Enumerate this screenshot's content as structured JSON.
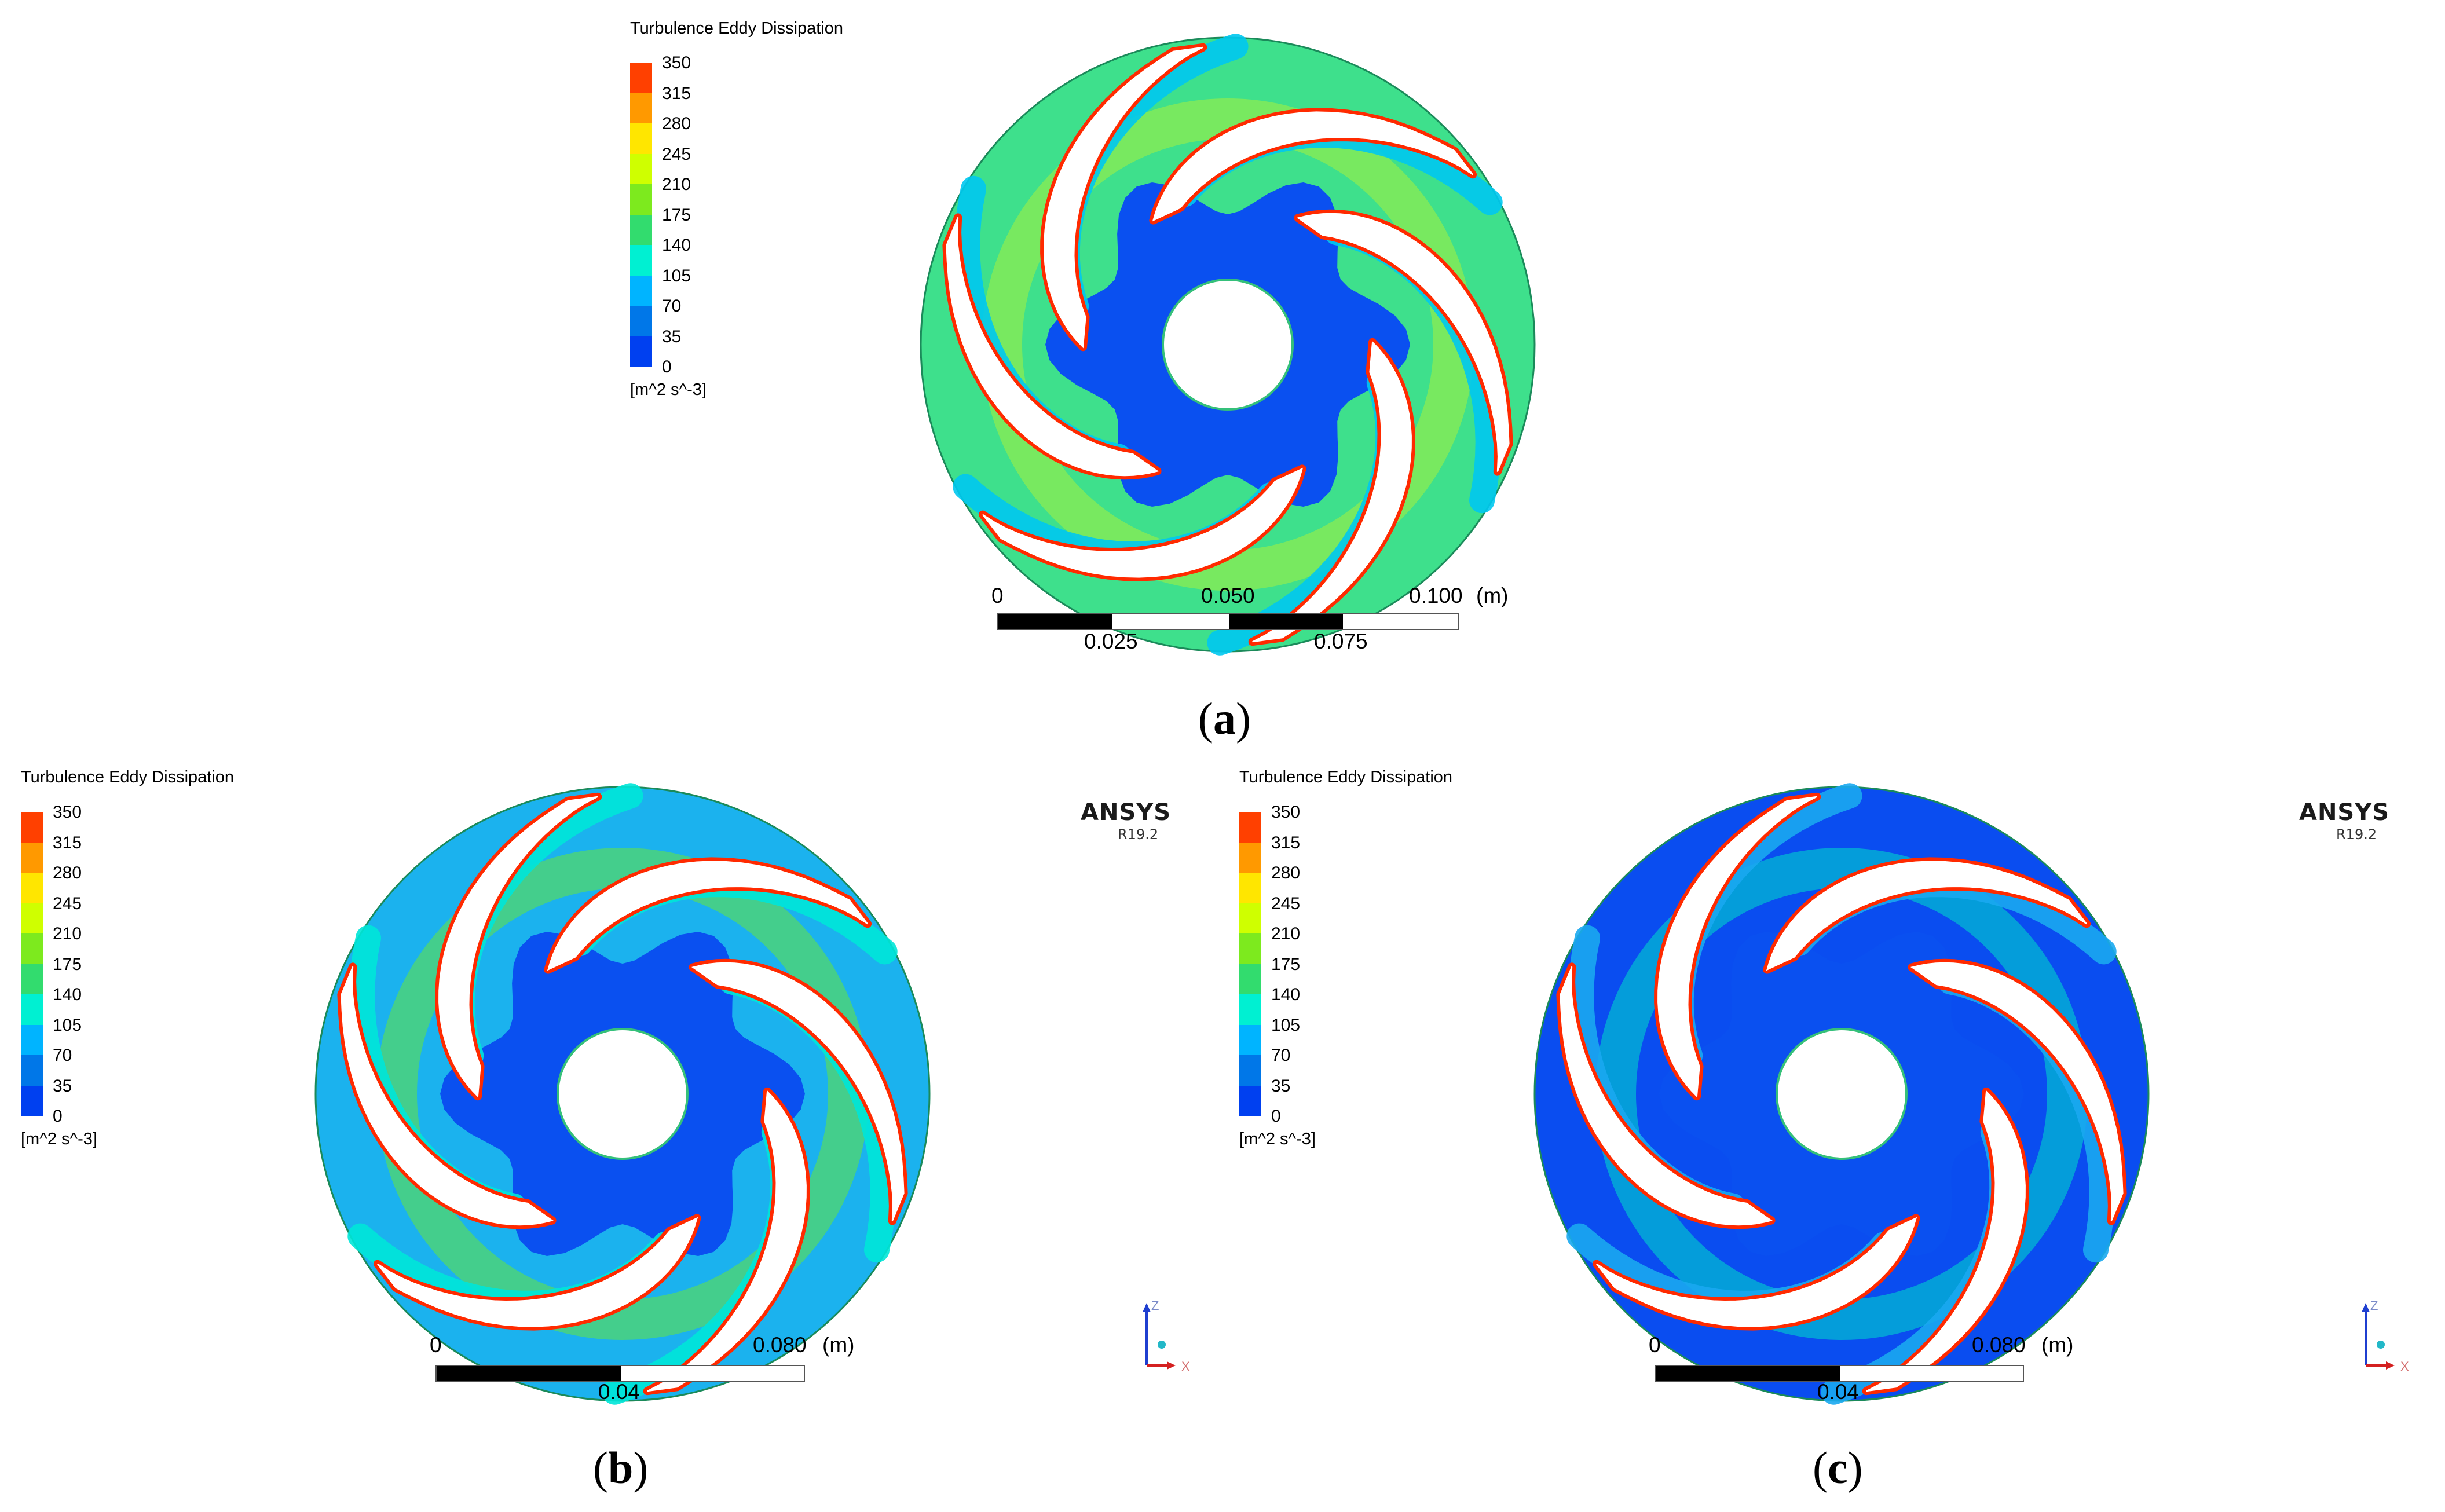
{
  "panels": [
    {
      "id": "a",
      "colorbar_title": "Turbulence Eddy Dissipation",
      "colorbar_unit": "[m^2 s^-3]",
      "colorbar_ticks": [
        "350",
        "315",
        "280",
        "245",
        "210",
        "175",
        "140",
        "105",
        "70",
        "35",
        "0"
      ],
      "scale_labels_top": [
        "0",
        "0.050",
        "0.100",
        "(m)"
      ],
      "scale_labels_bottom": [
        "0.025",
        "0.075"
      ],
      "caption_open": "(",
      "caption_letter": "a",
      "caption_close": ")"
    },
    {
      "id": "b",
      "colorbar_title": "Turbulence Eddy Dissipation",
      "colorbar_unit": "[m^2 s^-3]",
      "colorbar_ticks": [
        "350",
        "315",
        "280",
        "245",
        "210",
        "175",
        "140",
        "105",
        "70",
        "35",
        "0"
      ],
      "scale_labels_top": [
        "0",
        "0.080",
        "(m)"
      ],
      "scale_labels_bottom": [
        "0.04"
      ],
      "brand": "ANSYS",
      "brand_version": "R19.2",
      "axis_labels": [
        "Z",
        "X"
      ],
      "caption_open": "(",
      "caption_letter": "b",
      "caption_close": ")"
    },
    {
      "id": "c",
      "colorbar_title": "Turbulence Eddy Dissipation",
      "colorbar_unit": "[m^2 s^-3]",
      "colorbar_ticks": [
        "350",
        "315",
        "280",
        "245",
        "210",
        "175",
        "140",
        "105",
        "70",
        "35",
        "0"
      ],
      "scale_labels_top": [
        "0",
        "0.080",
        "(m)"
      ],
      "scale_labels_bottom": [
        "0.04"
      ],
      "brand": "ANSYS",
      "brand_version": "R19.2",
      "axis_labels": [
        "Z",
        "X"
      ],
      "caption_open": "(",
      "caption_letter": "c",
      "caption_close": ")"
    }
  ],
  "colormap": [
    "#ff4000",
    "#ff9900",
    "#ffe600",
    "#cfff00",
    "#7dea1e",
    "#32dc6e",
    "#00f0d2",
    "#00b4ff",
    "#0077e8",
    "#0040f0"
  ],
  "field_colors": {
    "a": {
      "base": "#3ee08c",
      "hub": "#0a50f0",
      "trail": "#00c8f0",
      "band": "#a8f03c",
      "tip": "#ff2a00"
    },
    "b": {
      "base": "#1bb2ee",
      "hub": "#0a50f0",
      "trail": "#00e6d8",
      "band": "#66e63c",
      "tip": "#ff2a00"
    },
    "c": {
      "base": "#0a4df0",
      "hub": "#0a50f0",
      "trail": "#1aa8f0",
      "band": "#00e0c8",
      "tip": "#ff2a00"
    }
  }
}
